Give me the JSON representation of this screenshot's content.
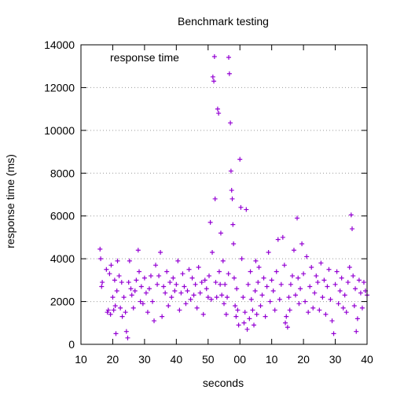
{
  "chart_data": {
    "type": "scatter",
    "title": "Benchmark testing",
    "xlabel": "seconds",
    "ylabel": "response time (ms)",
    "x_tick_labels": [
      "10",
      "20",
      "30",
      "40",
      "50",
      "00",
      "10",
      "20",
      "30",
      "40"
    ],
    "ylim": [
      0,
      14000
    ],
    "y_ticks": [
      0,
      2000,
      4000,
      6000,
      8000,
      10000,
      12000,
      14000
    ],
    "grid": "horizontal-dotted",
    "legend_position": "top-left",
    "marker": "plus",
    "color": "#9400d3",
    "series": [
      {
        "name": "response time",
        "points": [
          [
            16,
            4450
          ],
          [
            16.2,
            4000
          ],
          [
            16.5,
            2700
          ],
          [
            16.7,
            2900
          ],
          [
            18,
            3500
          ],
          [
            18.3,
            1500
          ],
          [
            18.6,
            1600
          ],
          [
            19,
            3300
          ],
          [
            19.3,
            1400
          ],
          [
            19.5,
            3700
          ],
          [
            20,
            2200
          ],
          [
            20.3,
            1600
          ],
          [
            20.6,
            3000
          ],
          [
            20.8,
            1800
          ],
          [
            21,
            500
          ],
          [
            21.3,
            2500
          ],
          [
            21.5,
            3900
          ],
          [
            22,
            3200
          ],
          [
            22.4,
            1700
          ],
          [
            22.8,
            2900
          ],
          [
            23,
            1300
          ],
          [
            23.5,
            2200
          ],
          [
            24,
            1500
          ],
          [
            24.3,
            600
          ],
          [
            24.7,
            300
          ],
          [
            25,
            2900
          ],
          [
            25.3,
            3900
          ],
          [
            25.7,
            2600
          ],
          [
            26,
            2300
          ],
          [
            26.5,
            1700
          ],
          [
            27,
            2500
          ],
          [
            27.4,
            3000
          ],
          [
            28,
            4400
          ],
          [
            28.3,
            3400
          ],
          [
            28.7,
            2000
          ],
          [
            29,
            2700
          ],
          [
            29.5,
            1900
          ],
          [
            30,
            3100
          ],
          [
            30.5,
            2400
          ],
          [
            31,
            1500
          ],
          [
            31.5,
            2600
          ],
          [
            32,
            3200
          ],
          [
            32.5,
            2000
          ],
          [
            33,
            1100
          ],
          [
            33.5,
            3700
          ],
          [
            34,
            2800
          ],
          [
            34.5,
            3200
          ],
          [
            35,
            4300
          ],
          [
            35.5,
            1300
          ],
          [
            36,
            2700
          ],
          [
            36.5,
            2400
          ],
          [
            37,
            3400
          ],
          [
            37.5,
            1800
          ],
          [
            38,
            2900
          ],
          [
            38.5,
            2200
          ],
          [
            39,
            3100
          ],
          [
            39.5,
            2500
          ],
          [
            40,
            2800
          ],
          [
            40.5,
            3900
          ],
          [
            41,
            1600
          ],
          [
            41.5,
            2400
          ],
          [
            42,
            3300
          ],
          [
            42.5,
            2700
          ],
          [
            43,
            1900
          ],
          [
            43.5,
            2500
          ],
          [
            44,
            3500
          ],
          [
            44.5,
            2100
          ],
          [
            45,
            3100
          ],
          [
            45.5,
            2300
          ],
          [
            46,
            2800
          ],
          [
            46.5,
            1700
          ],
          [
            47,
            3600
          ],
          [
            47.5,
            2400
          ],
          [
            48,
            2900
          ],
          [
            48.5,
            1400
          ],
          [
            49,
            3000
          ],
          [
            49.5,
            2600
          ],
          [
            50,
            2200
          ],
          [
            50.3,
            3200
          ],
          [
            50.7,
            5700
          ],
          [
            51,
            2100
          ],
          [
            51.3,
            4300
          ],
          [
            51.5,
            12500
          ],
          [
            51.8,
            12300
          ],
          [
            52,
            13450
          ],
          [
            52.2,
            6800
          ],
          [
            52.4,
            2900
          ],
          [
            52.7,
            2200
          ],
          [
            53,
            11000
          ],
          [
            53.3,
            10800
          ],
          [
            53.5,
            3400
          ],
          [
            53.8,
            2800
          ],
          [
            54,
            5200
          ],
          [
            54.3,
            2300
          ],
          [
            54.7,
            3900
          ],
          [
            55,
            1900
          ],
          [
            55.3,
            2800
          ],
          [
            55.7,
            1400
          ],
          [
            56,
            2200
          ],
          [
            56.4,
            3300
          ],
          [
            56.7,
            12650
          ],
          [
            57,
            10350
          ],
          [
            57.2,
            8100
          ],
          [
            57.4,
            7200
          ],
          [
            57.6,
            6800
          ],
          [
            57.8,
            5600
          ],
          [
            58,
            4700
          ],
          [
            58.2,
            3100
          ],
          [
            58.5,
            1800
          ],
          [
            58.8,
            1300
          ],
          [
            59,
            2600
          ],
          [
            59.3,
            1600
          ],
          [
            59.6,
            900
          ],
          [
            60,
            8650
          ],
          [
            60.3,
            6400
          ],
          [
            60.6,
            4000
          ],
          [
            61,
            2200
          ],
          [
            61.3,
            1000
          ],
          [
            61.6,
            1500
          ],
          [
            62,
            6300
          ],
          [
            62.3,
            700
          ],
          [
            62.6,
            2800
          ],
          [
            63,
            1200
          ],
          [
            63.3,
            3400
          ],
          [
            63.6,
            2100
          ],
          [
            64,
            1600
          ],
          [
            64.4,
            900
          ],
          [
            64.8,
            2500
          ],
          [
            65,
            3900
          ],
          [
            65.3,
            1400
          ],
          [
            65.7,
            2900
          ],
          [
            66,
            3600
          ],
          [
            66.5,
            1800
          ],
          [
            67,
            2300
          ],
          [
            67.5,
            3100
          ],
          [
            68,
            1300
          ],
          [
            68.5,
            2700
          ],
          [
            69,
            4300
          ],
          [
            69.5,
            2000
          ],
          [
            70,
            3000
          ],
          [
            70.5,
            2500
          ],
          [
            71,
            1600
          ],
          [
            71.5,
            3400
          ],
          [
            72,
            4900
          ],
          [
            72.5,
            2100
          ],
          [
            73,
            2800
          ],
          [
            73.5,
            5000
          ],
          [
            74,
            3700
          ],
          [
            74.3,
            1000
          ],
          [
            74.6,
            1300
          ],
          [
            75,
            800
          ],
          [
            75.4,
            2200
          ],
          [
            75.7,
            1600
          ],
          [
            76,
            2800
          ],
          [
            76.5,
            3200
          ],
          [
            77,
            4400
          ],
          [
            77.5,
            2300
          ],
          [
            78,
            5900
          ],
          [
            78.3,
            3100
          ],
          [
            78.6,
            1900
          ],
          [
            79,
            2600
          ],
          [
            79.5,
            4700
          ],
          [
            80,
            3300
          ],
          [
            80.5,
            2000
          ],
          [
            81,
            4100
          ],
          [
            81.5,
            1500
          ],
          [
            82,
            2700
          ],
          [
            82.5,
            3600
          ],
          [
            83,
            1700
          ],
          [
            83.5,
            2400
          ],
          [
            84,
            3200
          ],
          [
            84.5,
            2900
          ],
          [
            85,
            1600
          ],
          [
            85.5,
            3800
          ],
          [
            86,
            2200
          ],
          [
            86.5,
            3000
          ],
          [
            87,
            1400
          ],
          [
            87.5,
            2700
          ],
          [
            88,
            3500
          ],
          [
            88.5,
            2100
          ],
          [
            89,
            1100
          ],
          [
            89.5,
            500
          ],
          [
            90,
            2800
          ],
          [
            90.5,
            3400
          ],
          [
            91,
            1900
          ],
          [
            91.5,
            2500
          ],
          [
            92,
            3100
          ],
          [
            92.5,
            1700
          ],
          [
            93,
            2300
          ],
          [
            93.5,
            1500
          ],
          [
            94,
            2900
          ],
          [
            94.5,
            3600
          ],
          [
            95,
            6050
          ],
          [
            95.3,
            5400
          ],
          [
            95.6,
            3200
          ],
          [
            96,
            1800
          ],
          [
            96.3,
            2600
          ],
          [
            96.6,
            600
          ],
          [
            97,
            1200
          ],
          [
            97.5,
            3000
          ],
          [
            98,
            2400
          ],
          [
            98.5,
            1700
          ],
          [
            99,
            2900
          ],
          [
            99.5,
            2500
          ],
          [
            100,
            2300
          ]
        ]
      }
    ]
  }
}
